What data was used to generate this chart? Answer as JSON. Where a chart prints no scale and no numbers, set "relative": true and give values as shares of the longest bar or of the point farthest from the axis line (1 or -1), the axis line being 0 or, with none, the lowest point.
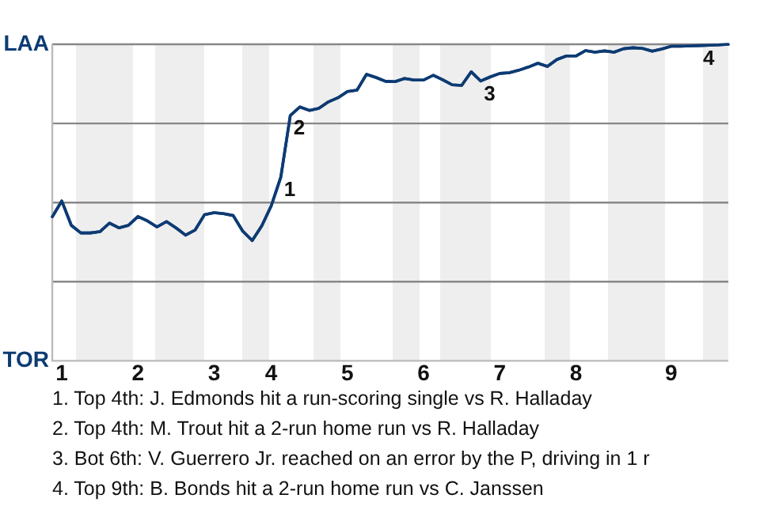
{
  "chart_data": {
    "type": "line",
    "relative": true,
    "categories": [
      null,
      "1",
      null,
      null,
      null,
      null,
      null,
      null,
      null,
      "2",
      null,
      null,
      null,
      null,
      null,
      null,
      null,
      "3",
      null,
      null,
      null,
      null,
      null,
      "4",
      null,
      null,
      null,
      null,
      null,
      null,
      null,
      "5",
      null,
      null,
      null,
      null,
      null,
      null,
      null,
      "6",
      null,
      null,
      null,
      null,
      null,
      null,
      null,
      "7",
      null,
      null,
      null,
      null,
      null,
      null,
      null,
      "8",
      null,
      null,
      null,
      null,
      null,
      null,
      null,
      null,
      null,
      "9",
      null,
      null,
      null,
      null,
      null,
      null
    ],
    "series": [
      {
        "color": "#0d3b73",
        "values": [
          0.455,
          0.505,
          0.428,
          0.404,
          0.404,
          0.408,
          0.435,
          0.42,
          0.428,
          0.456,
          0.442,
          0.423,
          0.44,
          0.42,
          0.397,
          0.413,
          0.462,
          0.468,
          0.465,
          0.459,
          0.41,
          0.38,
          0.426,
          0.49,
          0.58,
          0.775,
          0.802,
          0.791,
          0.798,
          0.818,
          0.831,
          0.851,
          0.855,
          0.905,
          0.895,
          0.883,
          0.882,
          0.892,
          0.887,
          0.887,
          0.902,
          0.888,
          0.872,
          0.87,
          0.913,
          0.884,
          0.897,
          0.908,
          0.91,
          0.918,
          0.928,
          0.94,
          0.93,
          0.952,
          0.963,
          0.963,
          0.98,
          0.975,
          0.979,
          0.975,
          0.986,
          0.989,
          0.987,
          0.978,
          0.985,
          0.994,
          0.994,
          0.995,
          0.996,
          0.997,
          0.998,
          1
        ]
      }
    ],
    "annotations": [
      "LAA",
      "TOR",
      {
        "text": "1",
        "y": 0.58
      },
      {
        "text": "2",
        "y": 0.775
      },
      {
        "text": "3",
        "y": 0.884
      },
      {
        "text": "4",
        "y": 0.996
      },
      "1. Top 4th: J. Edmonds hit a run-scoring single vs R. Halladay",
      "2. Top 4th: M. Trout hit a 2-run home run vs R. Halladay",
      "3. Bot 6th: V. Guerrero Jr. reached on an error by the P, driving in 1 r",
      "4. Top 9th: B. Bonds hit a 2-run home run vs C. Janssen"
    ],
    "grid": "y",
    "legend": false,
    "marker": "none",
    "line_style": "solid"
  }
}
